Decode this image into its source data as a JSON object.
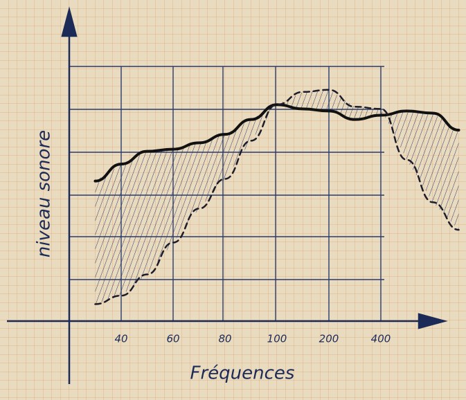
{
  "chart_data": {
    "type": "line",
    "x_label": "Fréquences",
    "y_label": "niveau sonore",
    "categories": [
      null,
      "40",
      null,
      "60",
      null,
      "80",
      null,
      "100",
      null,
      "200",
      null,
      "400",
      null,
      null,
      null
    ],
    "ylim": [
      0,
      6
    ],
    "series": [
      {
        "color": "#111111",
        "dash": false,
        "values": [
          3.3,
          3.7,
          4.0,
          4.05,
          4.2,
          4.4,
          4.75,
          5.1,
          5.0,
          4.95,
          4.75,
          4.85,
          4.95,
          4.9,
          4.5
        ]
      },
      {
        "color": "#1c1c2a",
        "dash": true,
        "values": [
          0.4,
          0.6,
          1.1,
          1.85,
          2.65,
          3.35,
          4.25,
          5.1,
          5.4,
          5.45,
          5.05,
          5.0,
          3.8,
          2.8,
          2.15
        ]
      }
    ]
  }
}
